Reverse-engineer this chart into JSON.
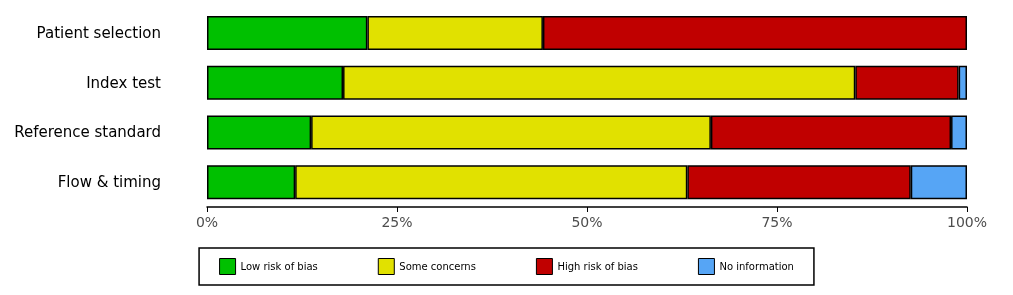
{
  "chart_data": {
    "type": "bar",
    "orientation": "horizontal",
    "stacked": true,
    "categories": [
      "Patient selection",
      "Index test",
      "Reference standard",
      "Flow & timing"
    ],
    "series": [
      {
        "name": "Low risk of bias",
        "color": "#00c000",
        "values": [
          21.1,
          17.9,
          13.7,
          11.6
        ]
      },
      {
        "name": "Some concerns",
        "color": "#e1e100",
        "values": [
          23.1,
          67.4,
          52.6,
          51.6
        ]
      },
      {
        "name": "High risk of bias",
        "color": "#c00000",
        "values": [
          55.8,
          13.6,
          31.6,
          29.4
        ]
      },
      {
        "name": "No information",
        "color": "#56a5f5",
        "values": [
          0,
          1.1,
          2.1,
          7.4
        ]
      }
    ],
    "xlim": [
      0,
      100
    ],
    "xticks": [
      {
        "value": 0,
        "label": "0%"
      },
      {
        "value": 25,
        "label": "25%"
      },
      {
        "value": 50,
        "label": "50%"
      },
      {
        "value": 75,
        "label": "75%"
      },
      {
        "value": 100,
        "label": "100%"
      }
    ],
    "grid": false,
    "legend": "bottom"
  }
}
